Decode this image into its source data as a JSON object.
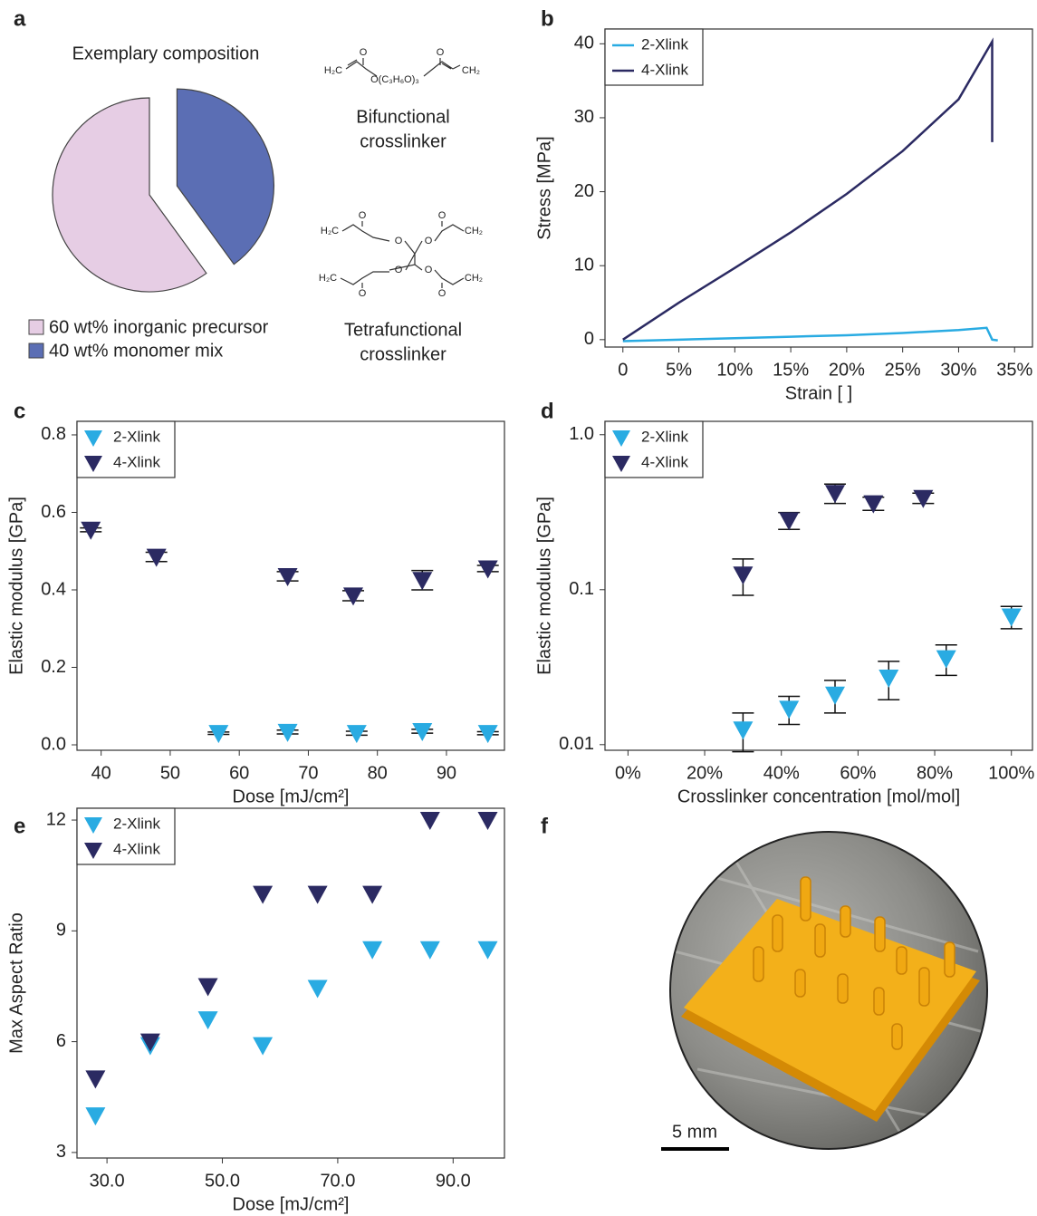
{
  "chart_data": [
    {
      "type": "pie",
      "panel_label": "a",
      "title": "Exemplary  composition",
      "categories": [
        "60 wt% inorganic precursor",
        "40 wt% monomer mix"
      ],
      "values": [
        60,
        40
      ],
      "colors": [
        "#e6cde4",
        "#5b6eb4"
      ]
    },
    {
      "type": "line",
      "panel_label": "b",
      "xlabel": "Strain [ ]",
      "ylabel": "Stress [MPa]",
      "xlim": [
        -1.6,
        36.6
      ],
      "xticks": [
        {
          "value": 0,
          "label": "0"
        },
        {
          "value": 5,
          "label": "5%"
        },
        {
          "value": 10,
          "label": "10%"
        },
        {
          "value": 15,
          "label": "15%"
        },
        {
          "value": 20,
          "label": "20%"
        },
        {
          "value": 25,
          "label": "25%"
        },
        {
          "value": 30,
          "label": "30%"
        },
        {
          "value": 35,
          "label": "35%"
        }
      ],
      "ylim": [
        -1,
        42
      ],
      "yticks": [
        0,
        10,
        20,
        30,
        40
      ],
      "legend": "upper left",
      "series": [
        {
          "name": "2-Xlink",
          "color": "#29abe2",
          "x": [
            0,
            5,
            10,
            15,
            20,
            25,
            30,
            32.5,
            33,
            33.5
          ],
          "values": [
            -0.2,
            0,
            0.2,
            0.4,
            0.6,
            0.9,
            1.3,
            1.6,
            0,
            -0.1
          ]
        },
        {
          "name": "4-Xlink",
          "color": "#2b2a62",
          "x": [
            0,
            5,
            10,
            15,
            20,
            25,
            30,
            33,
            33
          ],
          "values": [
            0,
            5,
            9.7,
            14.5,
            19.7,
            25.5,
            32.5,
            40.3,
            26.7
          ]
        }
      ]
    },
    {
      "type": "scatter",
      "panel_label": "c",
      "xlabel": "Dose [mJ/cm²]",
      "ylabel": "Elastic modulus [GPa]",
      "xlim": [
        36.5,
        98.4
      ],
      "xticks": [
        40,
        50,
        60,
        70,
        80,
        90
      ],
      "ylim": [
        -0.014,
        0.835
      ],
      "yticks": [
        {
          "value": 0,
          "label": "0.0"
        },
        0.2,
        0.4,
        0.6,
        0.8
      ],
      "legend": "upper left",
      "series": [
        {
          "name": "2-Xlink",
          "color": "#29abe2",
          "x": [
            57,
            67,
            77,
            86.5,
            96
          ],
          "values": [
            0.03,
            0.033,
            0.03,
            0.035,
            0.03
          ],
          "errors": [
            0.003,
            0.005,
            0.005,
            0.005,
            0.004
          ]
        },
        {
          "name": "4-Xlink",
          "color": "#2b2a62",
          "x": [
            38.5,
            48,
            67,
            76.5,
            86.5,
            96
          ],
          "values": [
            0.555,
            0.485,
            0.435,
            0.385,
            0.425,
            0.455
          ],
          "errors": [
            0.005,
            0.012,
            0.012,
            0.013,
            0.025,
            0.008
          ]
        }
      ]
    },
    {
      "type": "scatter",
      "panel_label": "d",
      "xlabel": "Crosslinker concentration [mol/mol]",
      "ylabel": "Elastic modulus [GPa]",
      "xlim": [
        -6,
        105.5
      ],
      "xticks": [
        {
          "value": 0,
          "label": "0%"
        },
        {
          "value": 20,
          "label": "20%"
        },
        {
          "value": 40,
          "label": "40%"
        },
        {
          "value": 60,
          "label": "60%"
        },
        {
          "value": 80,
          "label": "80%"
        },
        {
          "value": 100,
          "label": "100%"
        }
      ],
      "ylim": [
        0.0092,
        1.22
      ],
      "yticks": [
        0.01,
        0.1,
        {
          "value": 1,
          "label": "1.0"
        }
      ],
      "yscale": "log",
      "legend": "upper left",
      "series": [
        {
          "name": "2-Xlink",
          "color": "#29abe2",
          "x": [
            30,
            42,
            54,
            68,
            83,
            100
          ],
          "values": [
            0.0125,
            0.017,
            0.021,
            0.027,
            0.036,
            0.067
          ],
          "errors": [
            0.0035,
            0.0035,
            0.005,
            0.0075,
            0.008,
            0.011
          ]
        },
        {
          "name": "4-Xlink",
          "color": "#2b2a62",
          "x": [
            30,
            42,
            54,
            64,
            77
          ],
          "values": [
            0.125,
            0.28,
            0.42,
            0.36,
            0.39
          ],
          "errors": [
            0.033,
            0.035,
            0.06,
            0.035,
            0.03
          ]
        }
      ]
    },
    {
      "type": "scatter",
      "panel_label": "e",
      "xlabel": "Dose [mJ/cm²]",
      "ylabel": "Max Aspect Ratio",
      "xlim": [
        24.8,
        98.9
      ],
      "xticks": [
        {
          "value": 30,
          "label": "30.0"
        },
        {
          "value": 50,
          "label": "50.0"
        },
        {
          "value": 70,
          "label": "70.0"
        },
        {
          "value": 90,
          "label": "90.0"
        }
      ],
      "ylim": [
        2.85,
        12.32
      ],
      "yticks": [
        3,
        6,
        9,
        12
      ],
      "legend": "upper left",
      "series": [
        {
          "name": "2-Xlink",
          "color": "#29abe2",
          "x": [
            28,
            37.5,
            47.5,
            57,
            66.5,
            76,
            86,
            96
          ],
          "values": [
            4,
            5.9,
            6.6,
            5.9,
            7.45,
            8.5,
            8.5,
            8.5
          ]
        },
        {
          "name": "4-Xlink",
          "color": "#2b2a62",
          "x": [
            28,
            37.5,
            47.5,
            57,
            66.5,
            76,
            86,
            96
          ],
          "values": [
            5,
            6,
            7.5,
            10,
            10,
            10,
            12,
            12
          ]
        }
      ]
    }
  ],
  "structures": [
    {
      "atoms": [
        "H₂C",
        "O",
        "O(C₃H₆O)₃",
        "O",
        "CH₂"
      ],
      "caption": [
        "Bifunctional",
        "crosslinker"
      ]
    },
    {
      "atoms": [
        "H₂C",
        "O",
        "O",
        "O",
        "O",
        "CH₂",
        "H₂C",
        "O",
        "O",
        "O",
        "O",
        "CH₂"
      ],
      "caption": [
        "Tetrafunctional",
        "crosslinker"
      ]
    }
  ],
  "photo": {
    "panel_label": "f",
    "scale_bar_label": "5 mm"
  }
}
